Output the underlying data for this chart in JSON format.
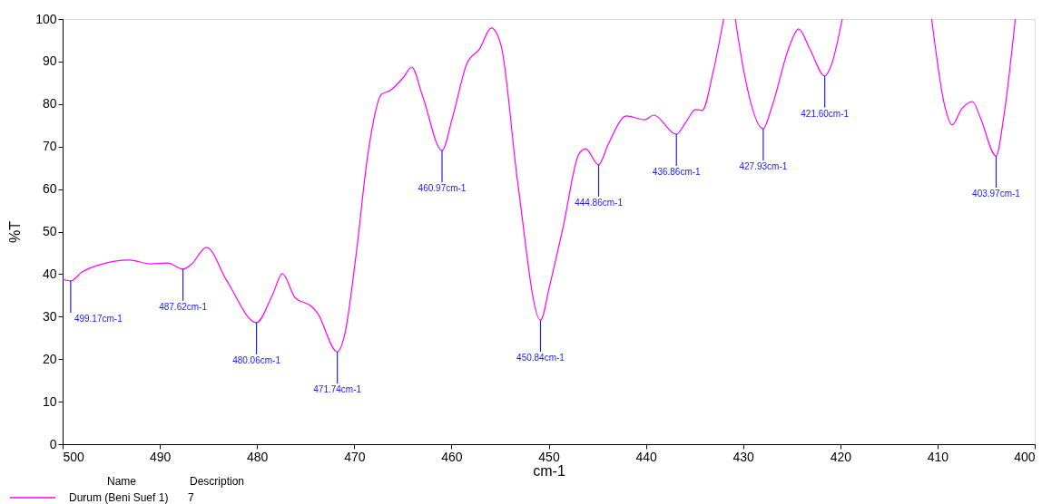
{
  "chart_data": {
    "type": "line",
    "xlabel": "cm-1",
    "ylabel": "%T",
    "legend_title": "Name",
    "xlim": [
      500,
      400
    ],
    "xticks": [
      500,
      490,
      480,
      470,
      460,
      450,
      440,
      430,
      420,
      410,
      400
    ],
    "ylim": [
      0,
      100
    ],
    "yticks": [
      0,
      10,
      20,
      30,
      40,
      50,
      60,
      70,
      80,
      90,
      100
    ],
    "grid": false,
    "legend": "bottom left",
    "marker": "none",
    "line_style": "solid",
    "x": [
      500,
      499.17,
      498.0,
      496.2,
      493.1,
      491.0,
      489.2,
      487.62,
      486.8,
      485.2,
      483.1,
      480.06,
      478.4,
      477.4,
      476.1,
      474.4,
      473.8,
      471.74,
      471.0,
      469.8,
      468.6,
      467.2,
      466.3,
      464.9,
      464.1,
      463.0,
      460.97,
      459.9,
      458.4,
      457.1,
      455.9,
      454.9,
      453.2,
      450.84,
      449.9,
      448.5,
      446.9,
      446.2,
      444.86,
      443.9,
      442.0,
      440.1,
      439.2,
      436.86,
      435.9,
      434.9,
      434.2,
      433.1,
      432.0,
      431.4,
      430.8,
      429.9,
      427.93,
      427.1,
      425.2,
      424.3,
      423.1,
      421.6,
      421.0,
      419.8,
      415.0,
      410.6,
      409.3,
      408.5,
      407.5,
      406.4,
      405.6,
      403.97,
      403.2,
      402.0
    ],
    "series": [
      {
        "name": "Durum (Beni Suef 1)",
        "color": "#ff00ff",
        "values": [
          38.8,
          38.4,
          40.5,
          42.2,
          43.3,
          42.4,
          42.6,
          41.2,
          42.2,
          46.3,
          38.4,
          28.6,
          35.2,
          40.1,
          34.5,
          32.4,
          30.9,
          21.7,
          25.6,
          44.8,
          68.2,
          82.3,
          83.2,
          86.4,
          88.7,
          82.1,
          69.1,
          76.8,
          89.6,
          93.0,
          97.9,
          93.8,
          61.8,
          29.2,
          37.3,
          51.2,
          68.2,
          69.5,
          65.7,
          70.4,
          77.2,
          76.3,
          77.4,
          72.9,
          75.7,
          78.7,
          78.5,
          87.4,
          100,
          null,
          100,
          87.4,
          74.2,
          78.9,
          93.8,
          97.7,
          92.8,
          86.6,
          88.7,
          100,
          null,
          100,
          80.0,
          75.1,
          78.9,
          80.6,
          76.8,
          67.8,
          76.8,
          100
        ]
      }
    ],
    "annotations": [
      {
        "text": "499.17cm-1",
        "x": 499.17,
        "y": 38.4
      },
      {
        "text": "487.62cm-1",
        "x": 487.62,
        "y": 41.2
      },
      {
        "text": "480.06cm-1",
        "x": 480.06,
        "y": 28.6
      },
      {
        "text": "471.74cm-1",
        "x": 471.74,
        "y": 21.7
      },
      {
        "text": "460.97cm-1",
        "x": 460.97,
        "y": 69.1
      },
      {
        "text": "450.84cm-1",
        "x": 450.84,
        "y": 29.2
      },
      {
        "text": "444.86cm-1",
        "x": 444.86,
        "y": 65.7
      },
      {
        "text": "436.86cm-1",
        "x": 436.86,
        "y": 72.9
      },
      {
        "text": "427.93cm-1",
        "x": 427.93,
        "y": 74.2
      },
      {
        "text": "421.60cm-1",
        "x": 421.6,
        "y": 86.6
      },
      {
        "text": "403.97cm-1",
        "x": 403.97,
        "y": 67.8
      },
      "Description",
      "7"
    ]
  }
}
